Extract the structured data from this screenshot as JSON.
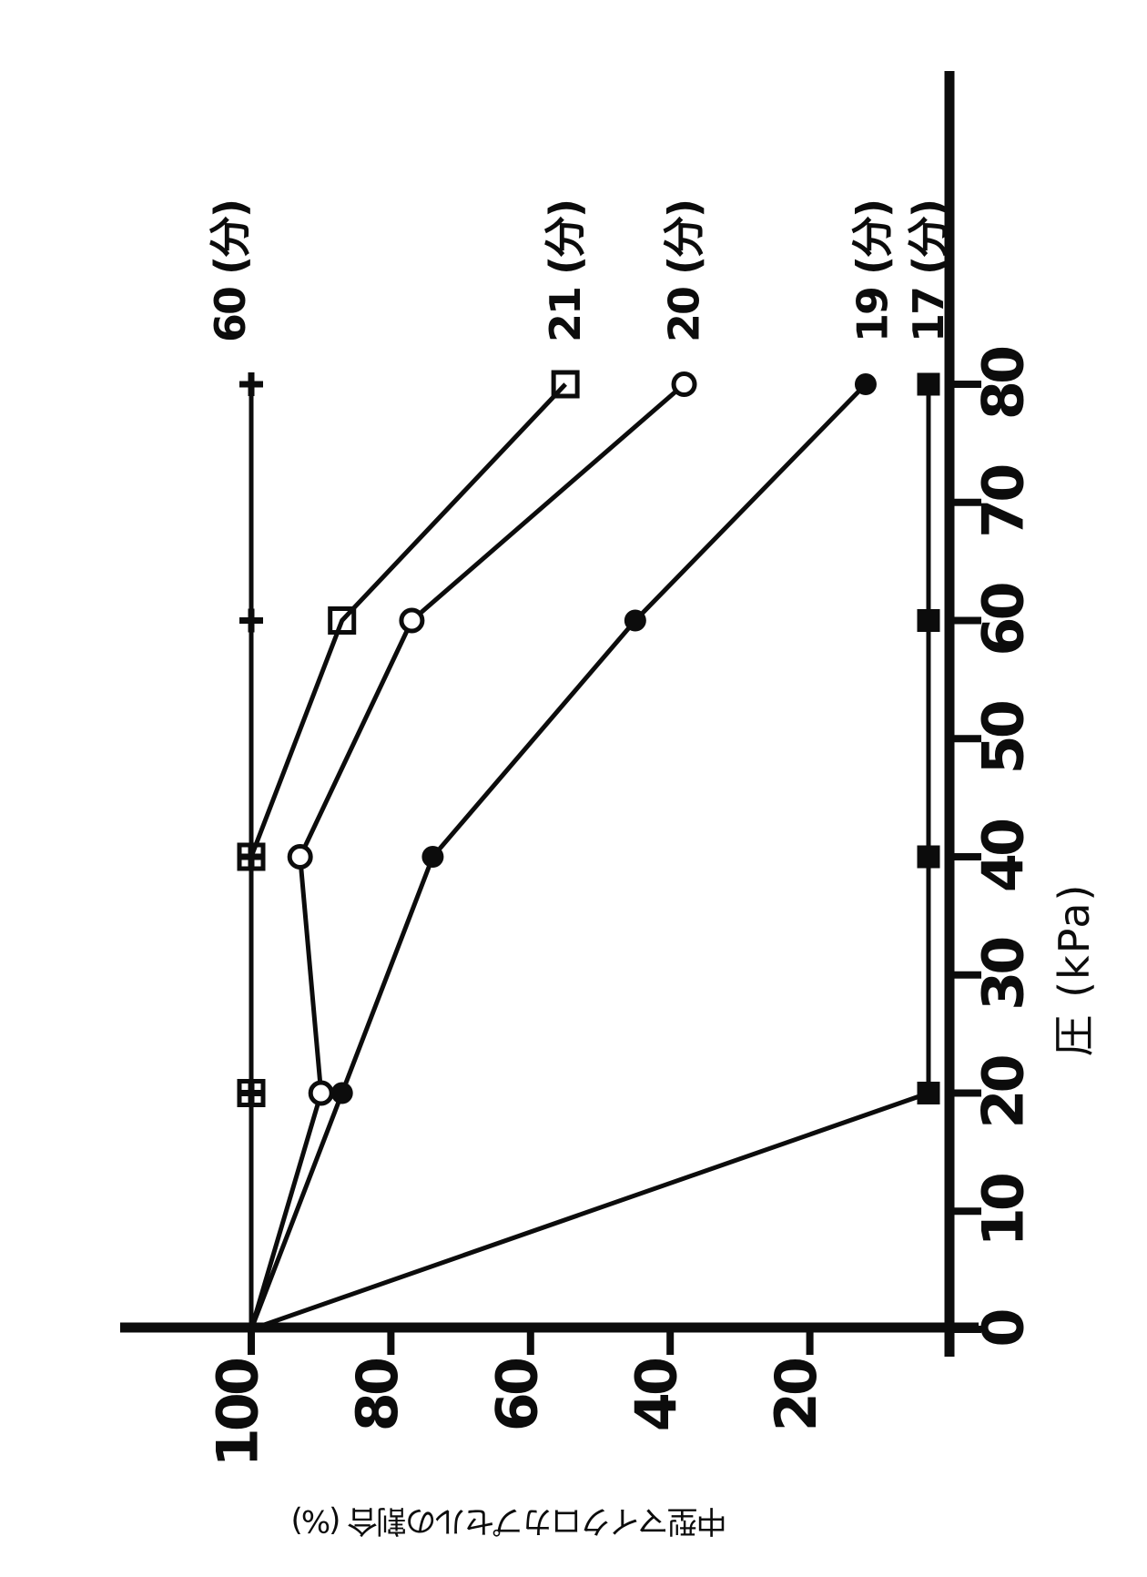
{
  "figure": {
    "kind": "scanned patent line chart, rotated 90deg CCW on page",
    "background": "#ffffff",
    "ink": "#0c0c0c"
  },
  "chart_data": {
    "type": "line",
    "title": "",
    "xlabel": "圧 (kPa)",
    "ylabel": "中型マイクロカプセルの割合 (%)",
    "xlim": [
      0,
      106
    ],
    "ylim": [
      0,
      119
    ],
    "x_ticks": [
      0,
      10,
      20,
      30,
      40,
      50,
      60,
      70,
      80
    ],
    "y_ticks": [
      20,
      40,
      60,
      80,
      100
    ],
    "grid": false,
    "legend_position": "labels-at-line-ends",
    "x": [
      0,
      20,
      40,
      60,
      80
    ],
    "series": [
      {
        "name": "60分",
        "label": "60 (分)",
        "marker": "plus",
        "values": [
          100,
          100,
          100,
          100,
          100
        ],
        "line_extend_x": 81,
        "label_y": 103
      },
      {
        "name": "21分",
        "label": "21 (分)",
        "marker": "square-open",
        "values": [
          100,
          100,
          100,
          87,
          55
        ],
        "label_y": 55
      },
      {
        "name": "20分",
        "label": "20 (分)",
        "marker": "circle-open",
        "values": [
          100,
          90,
          93,
          77,
          38
        ],
        "label_y": 38
      },
      {
        "name": "19分",
        "label": "19 (分)",
        "marker": "circle-filled",
        "values": [
          100,
          87,
          74,
          45,
          12
        ],
        "label_y": 11
      },
      {
        "name": "17分",
        "label": "17 (分)",
        "marker": "square-filled",
        "values": [
          100,
          3,
          3,
          3,
          3
        ],
        "label_y": 3
      }
    ]
  }
}
